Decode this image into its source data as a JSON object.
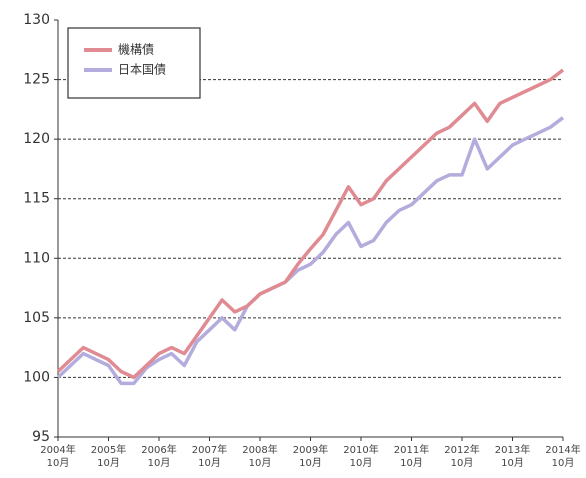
{
  "chart_data": {
    "type": "line",
    "categories": [
      "2004年10月",
      null,
      null,
      null,
      "2005年10月",
      null,
      null,
      null,
      "2006年10月",
      null,
      null,
      null,
      "2007年10月",
      null,
      null,
      null,
      "2008年10月",
      null,
      null,
      null,
      "2009年10月",
      null,
      null,
      null,
      "2010年10月",
      null,
      null,
      null,
      "2011年10月",
      null,
      null,
      null,
      "2012年10月",
      null,
      null,
      null,
      "2013年10月",
      null,
      null,
      null,
      "2014年10月"
    ],
    "series": [
      {
        "name": "機構債",
        "color": "#e08a92",
        "values": [
          100.5,
          101.5,
          102.5,
          102,
          101.5,
          100.5,
          100,
          101,
          102,
          102.5,
          102,
          103.5,
          105,
          106.5,
          105.5,
          106,
          107,
          107.5,
          108,
          109.5,
          110.8,
          112,
          114,
          116,
          114.5,
          115,
          116.5,
          117.5,
          118.5,
          119.5,
          120.5,
          121,
          122,
          123,
          121.5,
          123,
          123.5,
          124,
          124.5,
          125,
          125.8
        ]
      },
      {
        "name": "日本国債",
        "color": "#b3acdc",
        "values": [
          100,
          101,
          102,
          101.5,
          101,
          99.5,
          99.5,
          100.8,
          101.5,
          102,
          101,
          103,
          104,
          105,
          104,
          106,
          107,
          107.5,
          108,
          109,
          109.5,
          110.5,
          112,
          113,
          111,
          111.5,
          113,
          114,
          114.5,
          115.5,
          116.5,
          117,
          117,
          120,
          117.5,
          118.5,
          119.5,
          120,
          120.5,
          121,
          121.8
        ]
      }
    ],
    "ylim": [
      95,
      130
    ],
    "yticks": [
      95,
      100,
      105,
      110,
      115,
      120,
      125,
      130
    ],
    "grid": true,
    "legend": "upper left"
  }
}
